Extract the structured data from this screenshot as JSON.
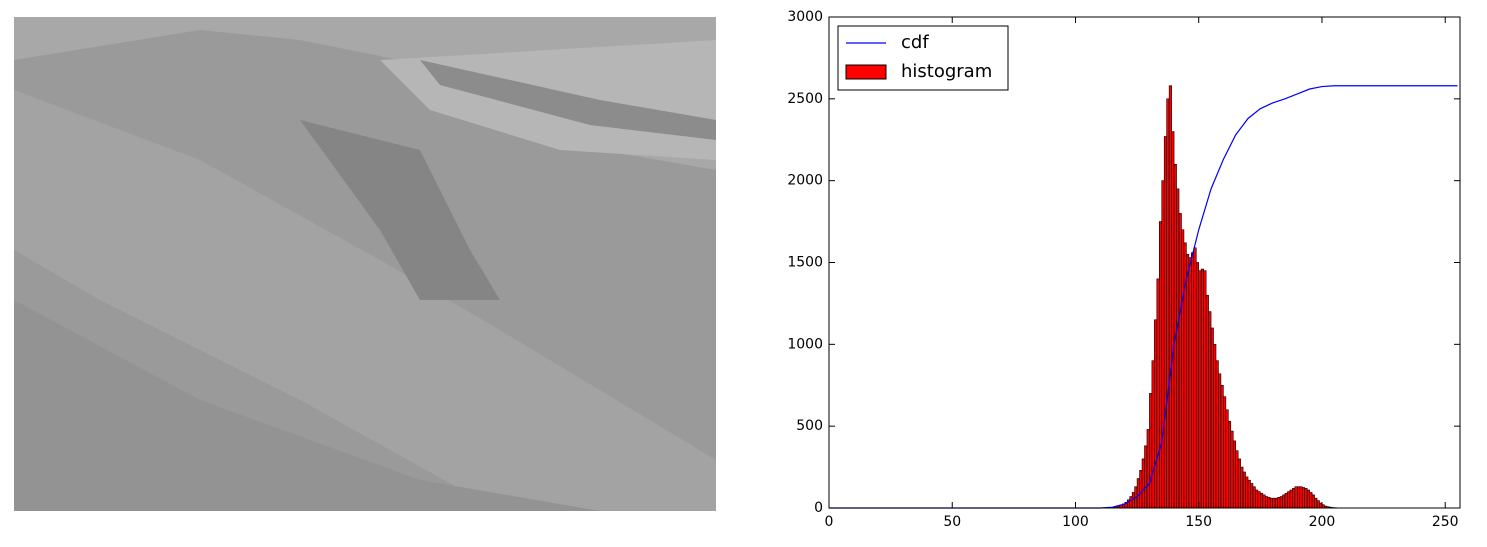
{
  "chart_data": {
    "type": "histogram",
    "xlim": [
      0,
      256
    ],
    "ylim": [
      0,
      3000
    ],
    "xticks": [
      0,
      50,
      100,
      150,
      200,
      250
    ],
    "yticks": [
      0,
      500,
      1000,
      1500,
      2000,
      2500,
      3000
    ],
    "legend": "upper left",
    "series": [
      {
        "name": "cdf",
        "type": "line",
        "color": "#0000ff",
        "x": [
          0,
          110,
          115,
          120,
          125,
          130,
          135,
          140,
          145,
          150,
          155,
          160,
          165,
          170,
          175,
          180,
          185,
          190,
          195,
          200,
          205,
          210,
          220,
          255
        ],
        "values": [
          0,
          0,
          5,
          25,
          70,
          150,
          400,
          1000,
          1400,
          1700,
          1950,
          2130,
          2280,
          2380,
          2440,
          2475,
          2500,
          2530,
          2560,
          2575,
          2580,
          2580,
          2580,
          2580
        ]
      },
      {
        "name": "histogram",
        "type": "histogram",
        "color": "#ff0000",
        "bins": [
          0,
          1,
          2,
          3,
          4,
          5,
          6,
          7,
          8,
          9,
          10,
          11,
          12,
          13,
          14,
          15,
          16,
          17,
          18,
          19,
          20,
          21,
          22,
          23,
          24,
          25,
          26,
          27,
          28,
          29,
          30,
          31,
          32,
          33,
          34,
          35,
          36,
          37,
          38,
          39,
          40,
          41,
          42,
          43,
          44,
          45,
          46,
          47,
          48,
          49,
          50,
          51,
          52,
          53,
          54,
          55,
          56,
          57,
          58,
          59,
          60,
          61,
          62,
          63,
          64,
          65,
          66,
          67,
          68,
          69,
          70,
          71,
          72,
          73,
          74,
          75,
          76,
          77,
          78,
          79,
          80,
          81,
          82,
          83,
          84,
          85,
          86,
          87,
          88,
          89,
          90,
          91,
          92,
          93,
          94,
          95,
          96,
          97,
          98,
          99,
          100,
          101,
          102,
          103,
          104,
          105,
          106,
          107,
          108,
          109,
          110,
          111,
          112,
          113,
          114,
          115,
          116,
          117,
          118,
          119,
          120,
          121,
          122,
          123,
          124,
          125,
          126,
          127,
          128,
          129,
          130,
          131,
          132,
          133,
          134,
          135,
          136,
          137,
          138,
          139,
          140,
          141,
          142,
          143,
          144,
          145,
          146,
          147,
          148,
          149,
          150,
          151,
          152,
          153,
          154,
          155,
          156,
          157,
          158,
          159,
          160,
          161,
          162,
          163,
          164,
          165,
          166,
          167,
          168,
          169,
          170,
          171,
          172,
          173,
          174,
          175,
          176,
          177,
          178,
          179,
          180,
          181,
          182,
          183,
          184,
          185,
          186,
          187,
          188,
          189,
          190,
          191,
          192,
          193,
          194,
          195,
          196,
          197,
          198,
          199,
          200,
          201,
          202,
          203,
          204,
          205,
          206,
          207,
          208,
          209,
          210,
          211,
          212,
          213,
          214,
          215,
          216,
          217,
          218,
          219,
          220,
          221,
          222,
          223,
          224,
          225,
          226,
          227,
          228,
          229,
          230,
          231,
          232,
          233,
          234,
          235,
          236,
          237,
          238,
          239,
          240,
          241,
          242,
          243,
          244,
          245,
          246,
          247,
          248,
          249,
          250,
          251,
          252,
          253,
          254,
          255,
          256
        ],
        "values": [
          0,
          0,
          0,
          0,
          0,
          0,
          0,
          0,
          0,
          0,
          0,
          0,
          0,
          0,
          0,
          0,
          0,
          0,
          0,
          0,
          0,
          0,
          0,
          0,
          0,
          0,
          0,
          0,
          0,
          0,
          0,
          0,
          0,
          0,
          0,
          0,
          0,
          0,
          0,
          0,
          0,
          0,
          0,
          0,
          0,
          0,
          0,
          0,
          0,
          0,
          0,
          0,
          0,
          0,
          0,
          0,
          0,
          0,
          0,
          0,
          0,
          0,
          0,
          0,
          0,
          0,
          0,
          0,
          0,
          0,
          0,
          0,
          0,
          0,
          0,
          0,
          0,
          0,
          0,
          0,
          0,
          0,
          0,
          0,
          0,
          0,
          0,
          0,
          0,
          0,
          0,
          0,
          0,
          0,
          0,
          0,
          0,
          0,
          0,
          0,
          0,
          0,
          0,
          0,
          0,
          0,
          0,
          0,
          0,
          0,
          0,
          0,
          0,
          2,
          3,
          5,
          8,
          12,
          18,
          25,
          35,
          50,
          70,
          95,
          130,
          180,
          230,
          300,
          380,
          480,
          700,
          900,
          1150,
          1400,
          1750,
          2000,
          2270,
          2500,
          2580,
          2300,
          2100,
          1950,
          1800,
          1700,
          1620,
          1550,
          1530,
          1560,
          1590,
          1500,
          1450,
          1460,
          1450,
          1300,
          1200,
          1100,
          1000,
          900,
          820,
          750,
          680,
          600,
          530,
          470,
          410,
          350,
          300,
          250,
          220,
          190,
          170,
          150,
          130,
          110,
          100,
          90,
          80,
          70,
          65,
          60,
          60,
          60,
          65,
          70,
          80,
          90,
          100,
          110,
          120,
          130,
          130,
          130,
          125,
          120,
          110,
          95,
          80,
          60,
          45,
          30,
          20,
          12,
          8,
          5,
          3,
          2,
          1,
          0,
          0,
          0,
          0,
          0,
          0,
          0,
          0,
          0,
          0,
          0,
          0,
          0,
          0,
          0,
          0,
          0,
          0,
          0,
          0,
          0,
          0,
          0,
          0,
          0,
          0,
          0,
          0,
          0,
          0,
          0,
          0,
          0,
          0,
          0,
          0,
          0,
          0,
          0,
          0,
          0,
          0,
          0,
          0,
          0,
          0,
          0,
          0,
          0
        ]
      }
    ]
  }
}
